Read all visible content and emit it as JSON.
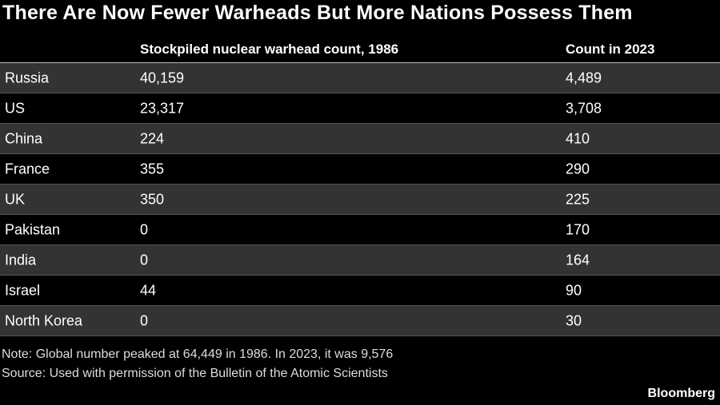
{
  "header": {
    "title": "There Are Now Fewer Warheads But More Nations Possess Them"
  },
  "table": {
    "columns": [
      "",
      "Stockpiled nuclear warhead count, 1986",
      "Count in 2023"
    ],
    "rows": [
      [
        "Russia",
        "40,159",
        "4,489"
      ],
      [
        "US",
        "23,317",
        "3,708"
      ],
      [
        "China",
        "224",
        "410"
      ],
      [
        "France",
        "355",
        "290"
      ],
      [
        "UK",
        "350",
        "225"
      ],
      [
        "Pakistan",
        "0",
        "170"
      ],
      [
        "India",
        "0",
        "164"
      ],
      [
        "Israel",
        "44",
        "90"
      ],
      [
        "North Korea",
        "0",
        "30"
      ]
    ]
  },
  "footer": {
    "note": "Note: Global number peaked at 64,449 in 1986. In 2023, it was 9,576",
    "source": "Source: Used with permission of the Bulletin of the Atomic Scientists",
    "brand": "Bloomberg"
  }
}
